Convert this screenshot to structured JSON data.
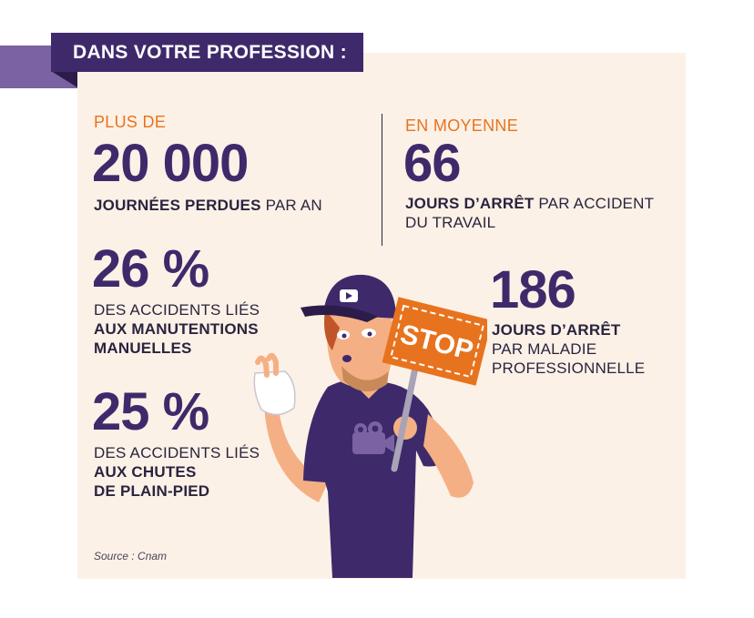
{
  "banner": {
    "title": "DANS VOTRE PROFESSION :"
  },
  "stats": {
    "journees": {
      "prefix": "PLUS DE",
      "value": "20 000",
      "bold": "JOURNÉES PERDUES",
      "rest": " PAR AN"
    },
    "manutentions": {
      "value": "26 %",
      "line1": "DES ACCIDENTS LIÉS",
      "bold1": "AUX MANUTENTIONS",
      "bold2": "MANUELLES"
    },
    "chutes": {
      "value": "25 %",
      "line1": "DES ACCIDENTS LIÉS",
      "bold1": "AUX CHUTES",
      "bold2": "DE PLAIN-PIED"
    },
    "accident": {
      "prefix": "EN MOYENNE",
      "value": "66",
      "bold": "JOURS D’ARRÊT",
      "rest": " PAR ACCIDENT",
      "line2": "DU TRAVAIL"
    },
    "maladie": {
      "value": "186",
      "bold": "JOURS D’ARRÊT",
      "line2": "PAR MALADIE",
      "line3": "PROFESSIONNELLE"
    }
  },
  "illustration": {
    "sign_text": "STOP"
  },
  "source": "Source : Cnam",
  "colors": {
    "purple": "#3e2a6b",
    "orange": "#e8731e",
    "background": "#fcf1e6",
    "accent_purple": "#7b62a3"
  }
}
